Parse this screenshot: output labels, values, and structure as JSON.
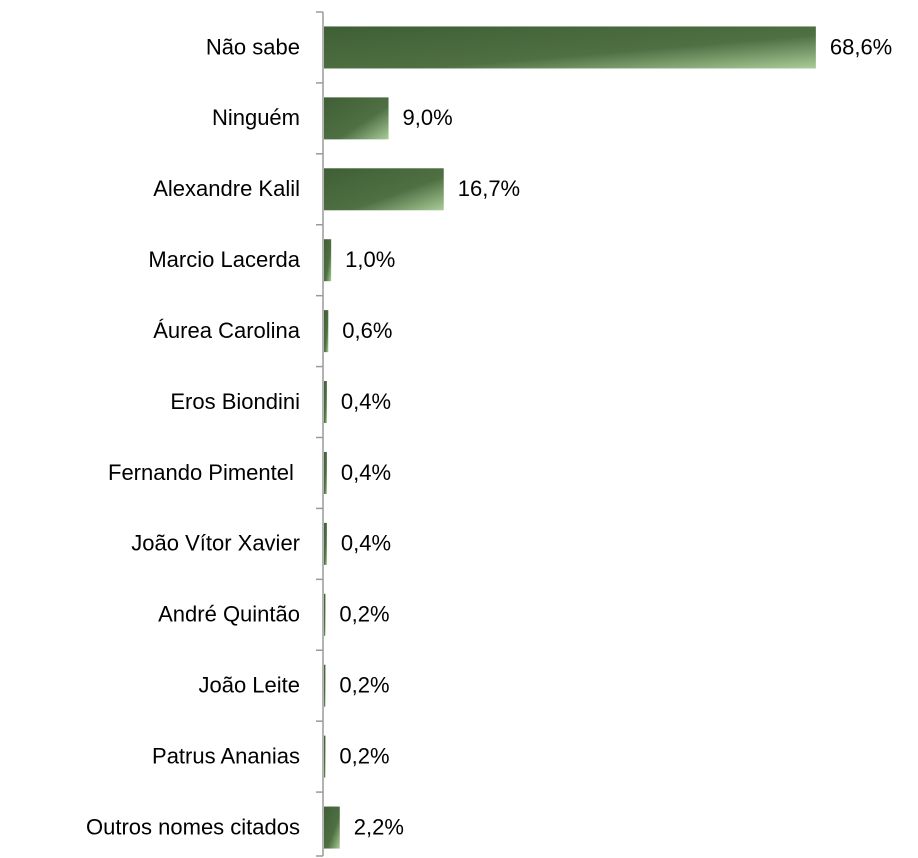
{
  "chart_data": {
    "type": "hbar",
    "categories": [
      "Não sabe",
      "Ninguém",
      "Alexandre Kalil",
      "Marcio Lacerda",
      "Áurea Carolina",
      "Eros Biondini",
      "Fernando Pimentel ",
      "João Vítor Xavier",
      "André Quintão",
      "João Leite",
      "Patrus Ananias",
      "Outros nomes citados"
    ],
    "values": [
      68.6,
      9.0,
      16.7,
      1.0,
      0.6,
      0.4,
      0.4,
      0.4,
      0.2,
      0.2,
      0.2,
      2.2
    ],
    "value_labels": [
      "68,6%",
      "9,0%",
      "16,7%",
      "1,0%",
      "0,6%",
      "0,4%",
      "0,4%",
      "0,4%",
      "0,2%",
      "0,2%",
      "0,2%",
      "2,2%"
    ],
    "color": "#4f7043",
    "xlim": [
      0,
      80
    ]
  }
}
